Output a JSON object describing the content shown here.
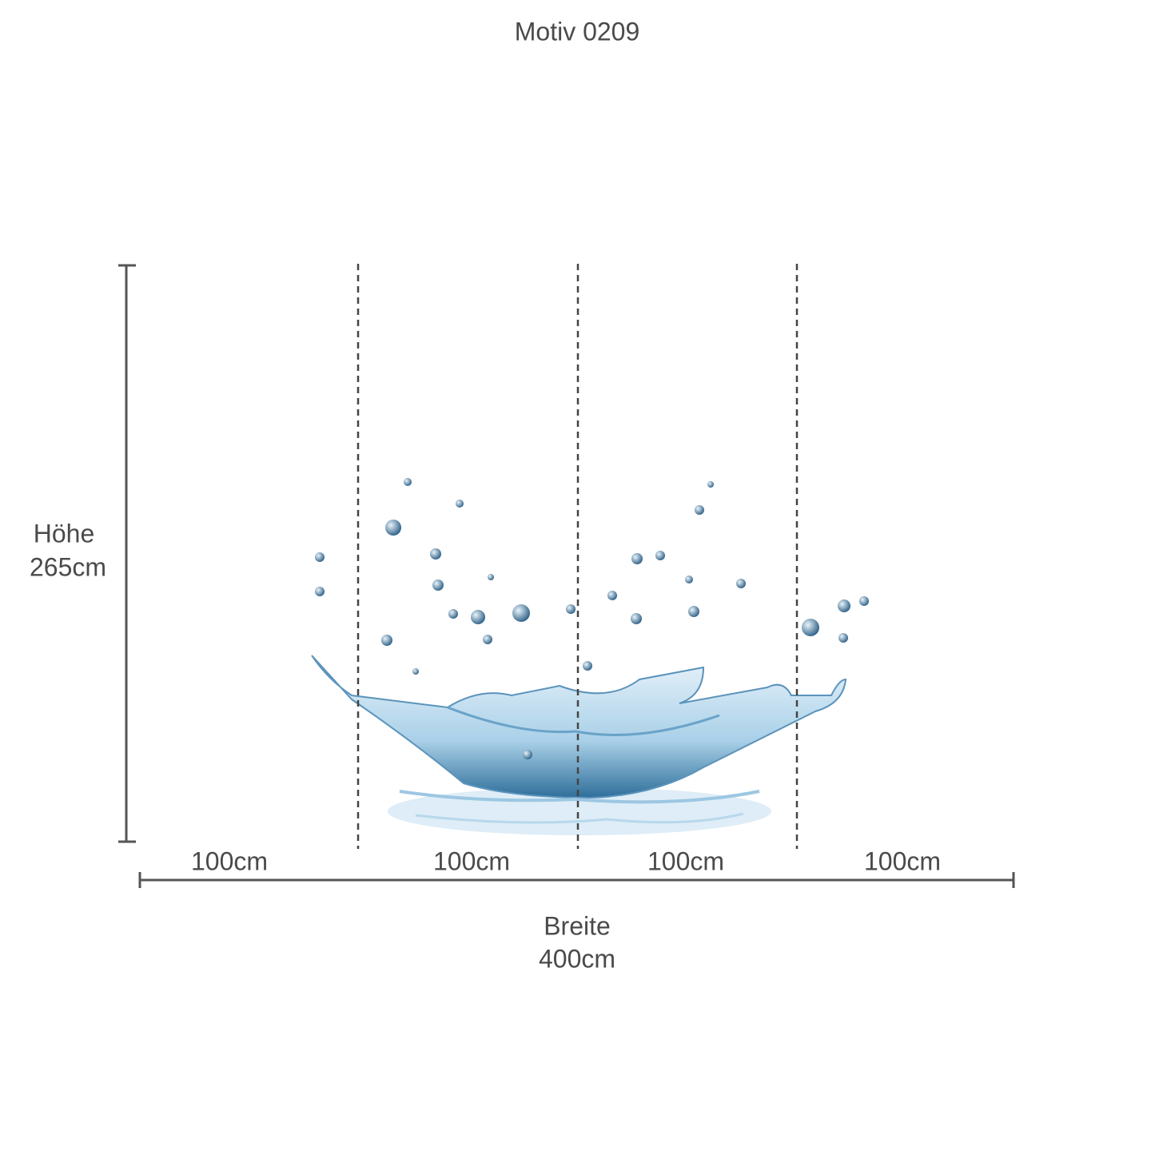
{
  "title": "Motiv 0209",
  "height": {
    "label": "Höhe",
    "value": "265cm"
  },
  "panels": [
    "100cm",
    "100cm",
    "100cm",
    "100cm"
  ],
  "width": {
    "label": "Breite",
    "value": "400cm"
  }
}
